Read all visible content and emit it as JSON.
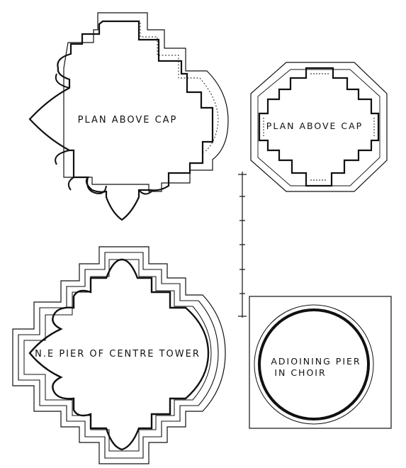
{
  "plans": {
    "pier_cap_left": {
      "label": "PLAN ABOVE CAP"
    },
    "pier_cap_right": {
      "label": "PLAN ABOVE CAP"
    },
    "ne_pier": {
      "label": "N.E PIER OF CENTRE TOWER"
    },
    "adjoining_pier": {
      "label_line1": "ADIOINING PIER",
      "label_line2": "IN CHOIR"
    }
  },
  "colors": {
    "ink": "#111111",
    "paper": "#ffffff"
  }
}
